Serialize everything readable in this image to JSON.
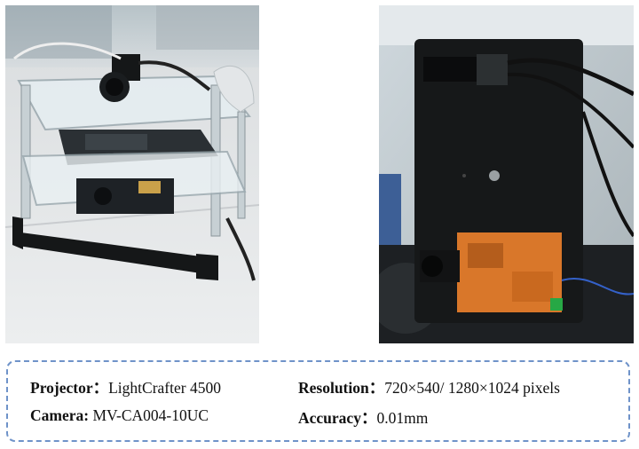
{
  "photos": {
    "left": {
      "subject": "acrylic projector and camera assembly"
    },
    "right": {
      "subject": "camera and projector mounted on black plate"
    }
  },
  "specs": {
    "projector": {
      "label": "Projector：",
      "value": "LightCrafter 4500"
    },
    "camera": {
      "label": "Camera: ",
      "value": "MV-CA004-10UC"
    },
    "resolution": {
      "label": "Resolution：",
      "value": "720×540/ 1280×1024 pixels"
    },
    "accuracy": {
      "label": "Accuracy：",
      "value": "0.01mm"
    }
  },
  "colors": {
    "box_border": "#6f93c9",
    "board_orange": "#d9772a",
    "plate_black": "#1a1a1a"
  }
}
